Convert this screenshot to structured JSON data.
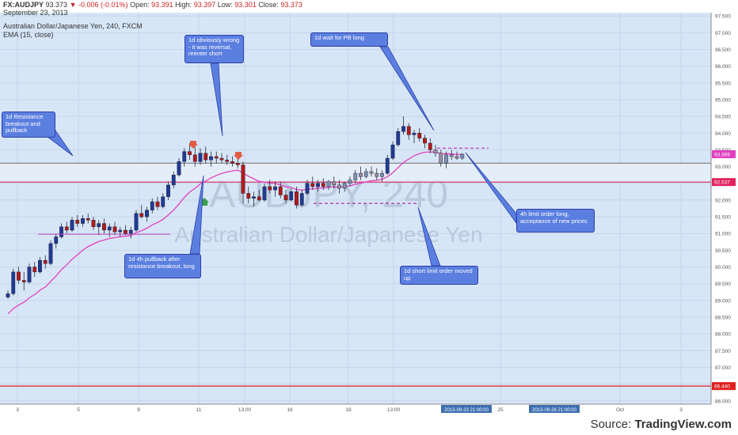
{
  "header": {
    "symbol": "FX:AUDJPY",
    "price": "93.373",
    "change": "-0.006 (-0.01%)",
    "open_label": "Open:",
    "open": "93.391",
    "high_label": "High:",
    "high": "93.397",
    "low_label": "Low:",
    "low": "93.301",
    "close_label": "Close:",
    "close": "93.373",
    "date": "September 23, 2013",
    "instrument": "Australian Dollar/Japanese Yen, 240, FXCM",
    "indicator": "EMA (15, close)"
  },
  "watermark": {
    "symbol": "AUDJPY, 240",
    "name": "Australian Dollar/Japanese Yen"
  },
  "source": {
    "prefix": "Source: ",
    "brand": "TradingView.com"
  },
  "annotations": [
    {
      "text": "1d Resistance breakout and pullback"
    },
    {
      "text": "1d obviously wrong - it was reversal, reenter short"
    },
    {
      "text": "1d wait for PB long"
    },
    {
      "text": "1d 4h pullback after resistance breakout, long"
    },
    {
      "text": "1d short limit order moved up"
    },
    {
      "text": "4h limit order long, acceptance of new prices"
    }
  ],
  "chart_data": {
    "type": "candlestick",
    "ylim": [
      85.9,
      97.6
    ],
    "y_ticks": [
      "97.500",
      "97.000",
      "96.500",
      "96.000",
      "95.500",
      "95.000",
      "94.500",
      "94.000",
      "93.500",
      "93.000",
      "92.500",
      "92.000",
      "91.500",
      "91.000",
      "90.500",
      "90.000",
      "89.500",
      "89.000",
      "88.500",
      "88.000",
      "87.500",
      "87.000",
      "86.500",
      "86.000"
    ],
    "x_ticks": [
      "3",
      "5",
      "9",
      "11",
      "13:00",
      "16",
      "18",
      "13:00",
      "25",
      "Oct",
      "3"
    ],
    "x_date_labels": [
      "2013-09-23 21:00:00",
      "2013-09-26 21:00:00"
    ],
    "price_tags": [
      {
        "label": "93.369",
        "value": 93.369,
        "color": "#e040c0"
      },
      {
        "label": "92.537",
        "value": 92.537,
        "color": "#e0245e"
      },
      {
        "label": "86.440",
        "value": 86.44,
        "color": "#e02020"
      }
    ],
    "levels": [
      {
        "name": "red line",
        "value": 86.44,
        "color": "#e02020"
      },
      {
        "name": "magenta line",
        "value": 92.537,
        "color": "#e0245e"
      },
      {
        "name": "gray line",
        "value": 93.1,
        "color": "#888888"
      }
    ],
    "zone": [
      92.55,
      93.1
    ],
    "candles": [
      [
        89.1,
        89.3,
        89.05,
        89.2
      ],
      [
        89.2,
        89.95,
        89.15,
        89.85
      ],
      [
        89.85,
        90.0,
        89.5,
        89.6
      ],
      [
        89.6,
        89.85,
        89.3,
        89.55
      ],
      [
        89.55,
        90.1,
        89.5,
        90.0
      ],
      [
        90.0,
        90.15,
        89.7,
        89.85
      ],
      [
        89.85,
        90.3,
        89.8,
        90.2
      ],
      [
        90.2,
        90.35,
        89.95,
        90.1
      ],
      [
        90.1,
        90.8,
        90.05,
        90.7
      ],
      [
        90.7,
        91.0,
        90.55,
        90.9
      ],
      [
        90.9,
        91.3,
        90.85,
        91.2
      ],
      [
        91.2,
        91.35,
        91.0,
        91.1
      ],
      [
        91.1,
        91.5,
        91.05,
        91.4
      ],
      [
        91.4,
        91.55,
        91.2,
        91.3
      ],
      [
        91.3,
        91.55,
        91.2,
        91.45
      ],
      [
        91.45,
        91.6,
        91.3,
        91.4
      ],
      [
        91.4,
        91.5,
        91.1,
        91.2
      ],
      [
        91.2,
        91.4,
        90.95,
        91.3
      ],
      [
        91.3,
        91.45,
        91.0,
        91.1
      ],
      [
        91.1,
        91.3,
        90.9,
        91.2
      ],
      [
        91.2,
        91.35,
        90.95,
        91.05
      ],
      [
        91.05,
        91.2,
        90.9,
        91.1
      ],
      [
        91.1,
        91.25,
        90.95,
        91.0
      ],
      [
        91.0,
        91.2,
        90.85,
        91.1
      ],
      [
        91.1,
        91.7,
        91.05,
        91.6
      ],
      [
        91.6,
        91.85,
        91.45,
        91.5
      ],
      [
        91.5,
        91.8,
        91.35,
        91.7
      ],
      [
        91.7,
        92.05,
        91.6,
        91.95
      ],
      [
        91.95,
        92.1,
        91.7,
        91.8
      ],
      [
        91.8,
        92.2,
        91.75,
        92.1
      ],
      [
        92.1,
        92.55,
        92.0,
        92.45
      ],
      [
        92.45,
        92.85,
        92.35,
        92.75
      ],
      [
        92.75,
        93.25,
        92.7,
        93.15
      ],
      [
        93.15,
        93.55,
        93.0,
        93.45
      ],
      [
        93.45,
        93.7,
        93.2,
        93.35
      ],
      [
        93.35,
        93.6,
        93.0,
        93.15
      ],
      [
        93.15,
        93.55,
        93.05,
        93.4
      ],
      [
        93.4,
        93.6,
        93.1,
        93.2
      ],
      [
        93.2,
        93.45,
        93.0,
        93.3
      ],
      [
        93.3,
        93.45,
        93.1,
        93.25
      ],
      [
        93.25,
        93.4,
        93.1,
        93.2
      ],
      [
        93.2,
        93.35,
        93.05,
        93.15
      ],
      [
        93.15,
        93.3,
        93.0,
        93.1
      ],
      [
        93.1,
        93.25,
        92.95,
        93.05
      ],
      [
        93.05,
        93.15,
        91.9,
        92.2
      ],
      [
        92.2,
        92.4,
        91.9,
        92.05
      ],
      [
        92.05,
        92.25,
        91.8,
        92.1
      ],
      [
        92.1,
        92.3,
        91.95,
        92.0
      ],
      [
        92.0,
        92.5,
        91.95,
        92.4
      ],
      [
        92.4,
        92.6,
        92.2,
        92.3
      ],
      [
        92.3,
        92.55,
        92.1,
        92.4
      ],
      [
        92.4,
        92.55,
        92.05,
        92.15
      ],
      [
        92.15,
        92.3,
        91.9,
        92.0
      ],
      [
        92.0,
        92.35,
        91.95,
        92.25
      ],
      [
        92.25,
        92.4,
        91.75,
        91.85
      ],
      [
        91.85,
        92.3,
        91.8,
        92.2
      ],
      [
        92.2,
        92.6,
        92.15,
        92.5
      ],
      [
        92.5,
        92.7,
        92.3,
        92.4
      ],
      [
        92.4,
        92.6,
        92.25,
        92.5
      ],
      [
        92.5,
        92.65,
        92.3,
        92.4
      ],
      [
        92.4,
        92.6,
        92.3,
        92.55
      ],
      [
        92.55,
        92.7,
        92.35,
        92.45
      ],
      [
        92.45,
        92.6,
        92.2,
        92.35
      ],
      [
        92.35,
        92.55,
        92.25,
        92.5
      ],
      [
        92.5,
        92.7,
        92.4,
        92.6
      ],
      [
        92.6,
        92.9,
        92.5,
        92.8
      ],
      [
        92.8,
        93.0,
        92.6,
        92.7
      ],
      [
        92.7,
        92.95,
        92.65,
        92.85
      ],
      [
        92.85,
        93.0,
        92.7,
        92.8
      ],
      [
        92.8,
        92.95,
        92.6,
        92.7
      ],
      [
        92.7,
        92.9,
        92.55,
        92.8
      ],
      [
        92.8,
        93.35,
        92.75,
        93.25
      ],
      [
        93.25,
        93.75,
        93.2,
        93.65
      ],
      [
        93.65,
        94.15,
        93.6,
        94.05
      ],
      [
        94.05,
        94.5,
        93.95,
        94.2
      ],
      [
        94.2,
        94.3,
        93.8,
        93.95
      ],
      [
        93.95,
        94.1,
        93.7,
        94.0
      ],
      [
        94.0,
        94.15,
        93.75,
        93.85
      ],
      [
        93.85,
        93.95,
        93.55,
        93.7
      ],
      [
        93.7,
        93.85,
        93.4,
        93.5
      ],
      [
        93.5,
        93.65,
        93.3,
        93.4
      ],
      [
        93.4,
        93.5,
        93.0,
        93.1
      ],
      [
        93.1,
        93.45,
        92.95,
        93.35
      ],
      [
        93.35,
        93.5,
        93.2,
        93.3
      ],
      [
        93.3,
        93.45,
        93.2,
        93.25
      ],
      [
        93.25,
        93.4,
        93.2,
        93.37
      ]
    ]
  }
}
